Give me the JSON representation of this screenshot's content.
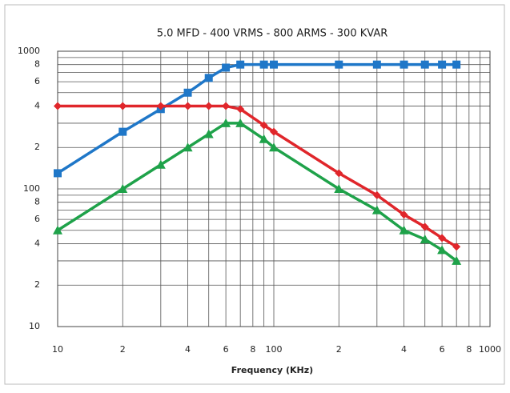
{
  "chart_data": {
    "type": "line",
    "title": "5.0 MFD - 400 VRMS - 800 ARMS - 300 KVAR",
    "x_label": "Frequency (KHz)",
    "log_x": true,
    "log_y": true,
    "grid": true,
    "xlim": [
      10,
      1000
    ],
    "ylim": [
      10,
      1000
    ],
    "xticks": [
      10,
      {
        "value": 20,
        "label": "2"
      },
      {
        "value": 40,
        "label": "4"
      },
      {
        "value": 60,
        "label": "6"
      },
      {
        "value": 80,
        "label": "8"
      },
      100,
      {
        "value": 200,
        "label": "2"
      },
      {
        "value": 400,
        "label": "4"
      },
      {
        "value": 600,
        "label": "6"
      },
      {
        "value": 800,
        "label": "8"
      },
      1000
    ],
    "yticks": [
      10,
      {
        "value": 20,
        "label": "2"
      },
      {
        "value": 40,
        "label": "4"
      },
      {
        "value": 60,
        "label": "6"
      },
      {
        "value": 80,
        "label": "8"
      },
      100,
      {
        "value": 200,
        "label": "2"
      },
      {
        "value": 400,
        "label": "4"
      },
      {
        "value": 600,
        "label": "6"
      },
      {
        "value": 800,
        "label": "8"
      },
      1000
    ],
    "x_minor_grid": [
      30,
      50,
      70,
      90,
      300,
      500,
      700,
      900
    ],
    "y_minor_grid": [
      30,
      50,
      70,
      90,
      300,
      500,
      700,
      900
    ],
    "series": [
      {
        "color": "#1f77c8",
        "marker": "square",
        "x": [
          10,
          20,
          30,
          40,
          50,
          60,
          70,
          90,
          100,
          200,
          300,
          400,
          500,
          600,
          700
        ],
        "values": [
          130,
          260,
          380,
          500,
          640,
          760,
          800,
          800,
          800,
          800,
          800,
          800,
          800,
          800,
          800
        ]
      },
      {
        "color": "#e0262b",
        "marker": "diamond",
        "x": [
          10,
          20,
          30,
          40,
          50,
          60,
          70,
          90,
          100,
          200,
          300,
          400,
          500,
          600,
          700
        ],
        "values": [
          400,
          400,
          400,
          400,
          400,
          400,
          380,
          290,
          260,
          130,
          90,
          65,
          53,
          44,
          38
        ]
      },
      {
        "color": "#1fa24a",
        "marker": "triangle",
        "x": [
          10,
          20,
          30,
          40,
          50,
          60,
          70,
          90,
          100,
          200,
          300,
          400,
          500,
          600,
          700
        ],
        "values": [
          50,
          100,
          150,
          200,
          250,
          300,
          300,
          230,
          200,
          100,
          70,
          50,
          43,
          36,
          30
        ]
      }
    ]
  }
}
